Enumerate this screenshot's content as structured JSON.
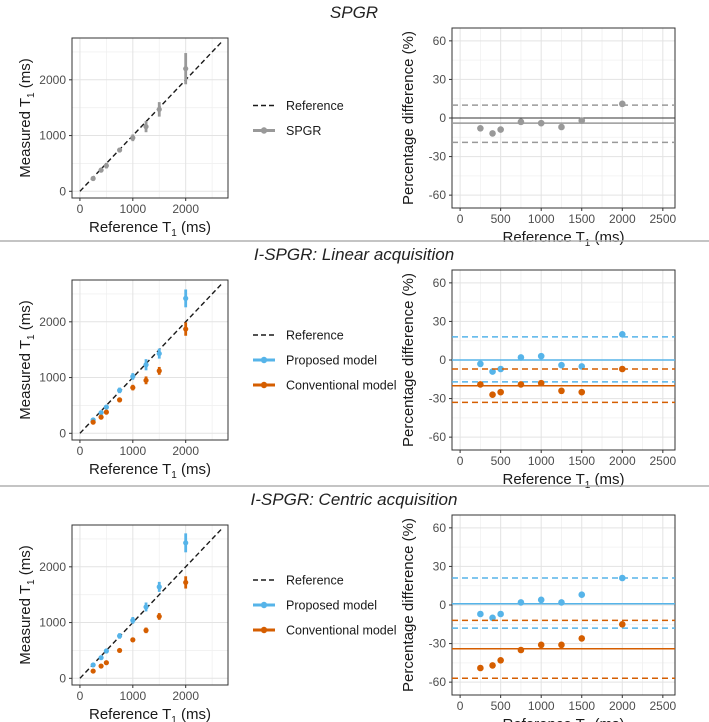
{
  "figure": {
    "sep_color": "#b0b0b0",
    "colors": {
      "ref": "#1a1a1a",
      "spgr": "#999999",
      "proposed": "#56b4e9",
      "conventional": "#d55e00"
    }
  },
  "chart_data": [
    {
      "id": "spgr",
      "title": "SPGR",
      "scatter": {
        "type": "scatter",
        "xlabel": "Reference T",
        "xlabel_sub": "1",
        "xlabel_unit": " (ms)",
        "ylabel": "Measured T",
        "ylabel_sub": "1",
        "ylabel_unit": " (ms)",
        "xlim": [
          -150,
          2800
        ],
        "ylim": [
          -120,
          2750
        ],
        "xticks": [
          0,
          1000,
          2000
        ],
        "yticks": [
          0,
          1000,
          2000
        ],
        "reference_line": [
          [
            0,
            0
          ],
          [
            2700,
            2700
          ]
        ],
        "series": [
          {
            "name": "SPGR",
            "color": "#999999",
            "x": [
              250,
              400,
              500,
              750,
              1000,
              1250,
              1500,
              2000
            ],
            "y": [
              230,
              380,
              460,
              740,
              960,
              1160,
              1470,
              2200
            ],
            "err": [
              40,
              40,
              50,
              40,
              60,
              100,
              130,
              280
            ]
          }
        ]
      },
      "legend": [
        {
          "label": "Reference",
          "style": "dashed",
          "color": "#1a1a1a"
        },
        {
          "label": "SPGR",
          "style": "point",
          "color": "#999999"
        }
      ],
      "diff": {
        "type": "scatter",
        "xlabel": "Reference T",
        "xlabel_sub": "1",
        "xlabel_unit": " (ms)",
        "ylabel": "Percentage difference (%)",
        "xlim": [
          -100,
          2650
        ],
        "ylim": [
          -70,
          70
        ],
        "xticks": [
          0,
          500,
          1000,
          1500,
          2000,
          2500
        ],
        "yticks": [
          -60,
          -30,
          0,
          30,
          60
        ],
        "series": [
          {
            "name": "SPGR",
            "color": "#999999",
            "x": [
              250,
              400,
              500,
              750,
              1000,
              1250,
              1500,
              2000
            ],
            "y": [
              -8,
              -12,
              -9,
              -3,
              -4,
              -7,
              -2,
              11
            ],
            "zero_line": 0,
            "mean": -4,
            "loa": [
              -19,
              10
            ]
          }
        ]
      }
    },
    {
      "id": "linear",
      "title": "I-SPGR: Linear acquisition",
      "scatter": {
        "type": "scatter",
        "xlabel": "Reference T",
        "xlabel_sub": "1",
        "xlabel_unit": " (ms)",
        "ylabel": "Measured T",
        "ylabel_sub": "1",
        "ylabel_unit": " (ms)",
        "xlim": [
          -150,
          2800
        ],
        "ylim": [
          -120,
          2750
        ],
        "xticks": [
          0,
          1000,
          2000
        ],
        "yticks": [
          0,
          1000,
          2000
        ],
        "reference_line": [
          [
            0,
            0
          ],
          [
            2700,
            2700
          ]
        ],
        "series": [
          {
            "name": "Proposed model",
            "color": "#56b4e9",
            "x": [
              250,
              400,
              500,
              750,
              1000,
              1250,
              1500,
              2000
            ],
            "y": [
              240,
              370,
              470,
              770,
              1020,
              1230,
              1430,
              2420
            ],
            "err": [
              30,
              30,
              40,
              50,
              60,
              100,
              90,
              160
            ]
          },
          {
            "name": "Conventional model",
            "color": "#d55e00",
            "x": [
              250,
              400,
              500,
              750,
              1000,
              1250,
              1500,
              2000
            ],
            "y": [
              200,
              290,
              380,
              600,
              820,
              950,
              1120,
              1870
            ],
            "err": [
              30,
              30,
              30,
              40,
              50,
              70,
              70,
              120
            ]
          }
        ]
      },
      "legend": [
        {
          "label": "Reference",
          "style": "dashed",
          "color": "#1a1a1a"
        },
        {
          "label": "Proposed model",
          "style": "point",
          "color": "#56b4e9"
        },
        {
          "label": "Conventional model",
          "style": "point",
          "color": "#d55e00"
        }
      ],
      "diff": {
        "type": "scatter",
        "xlabel": "Reference T",
        "xlabel_sub": "1",
        "xlabel_unit": " (ms)",
        "ylabel": "Percentage difference (%)",
        "xlim": [
          -100,
          2650
        ],
        "ylim": [
          -70,
          70
        ],
        "xticks": [
          0,
          500,
          1000,
          1500,
          2000,
          2500
        ],
        "yticks": [
          -60,
          -30,
          0,
          30,
          60
        ],
        "series": [
          {
            "name": "Proposed model",
            "color": "#56b4e9",
            "x": [
              250,
              400,
              500,
              750,
              1000,
              1250,
              1500,
              2000
            ],
            "y": [
              -3,
              -9,
              -7,
              2,
              3,
              -4,
              -5,
              20
            ],
            "mean": 0,
            "loa": [
              -17,
              18
            ]
          },
          {
            "name": "Conventional model",
            "color": "#d55e00",
            "x": [
              250,
              400,
              500,
              750,
              1000,
              1250,
              1500,
              2000
            ],
            "y": [
              -19,
              -27,
              -25,
              -19,
              -18,
              -24,
              -25,
              -7
            ],
            "mean": -20,
            "loa": [
              -33,
              -7
            ]
          }
        ]
      }
    },
    {
      "id": "centric",
      "title": "I-SPGR: Centric acquisition",
      "scatter": {
        "type": "scatter",
        "xlabel": "Reference T",
        "xlabel_sub": "1",
        "xlabel_unit": " (ms)",
        "ylabel": "Measured T",
        "ylabel_sub": "1",
        "ylabel_unit": " (ms)",
        "xlim": [
          -150,
          2800
        ],
        "ylim": [
          -120,
          2750
        ],
        "xticks": [
          0,
          1000,
          2000
        ],
        "yticks": [
          0,
          1000,
          2000
        ],
        "reference_line": [
          [
            0,
            0
          ],
          [
            2700,
            2700
          ]
        ],
        "series": [
          {
            "name": "Proposed model",
            "color": "#56b4e9",
            "x": [
              250,
              400,
              500,
              750,
              1000,
              1250,
              1500,
              2000
            ],
            "y": [
              240,
              370,
              490,
              760,
              1040,
              1280,
              1640,
              2430
            ],
            "err": [
              30,
              30,
              40,
              50,
              60,
              80,
              90,
              170
            ]
          },
          {
            "name": "Conventional model",
            "color": "#d55e00",
            "x": [
              250,
              400,
              500,
              750,
              1000,
              1250,
              1500,
              2000
            ],
            "y": [
              130,
              220,
              280,
              500,
              690,
              860,
              1110,
              1720
            ],
            "err": [
              20,
              20,
              30,
              30,
              40,
              50,
              60,
              110
            ]
          }
        ]
      },
      "legend": [
        {
          "label": "Reference",
          "style": "dashed",
          "color": "#1a1a1a"
        },
        {
          "label": "Proposed model",
          "style": "point",
          "color": "#56b4e9"
        },
        {
          "label": "Conventional model",
          "style": "point",
          "color": "#d55e00"
        }
      ],
      "diff": {
        "type": "scatter",
        "xlabel": "Reference T",
        "xlabel_sub": "1",
        "xlabel_unit": " (ms)",
        "ylabel": "Percentage difference (%)",
        "xlim": [
          -100,
          2650
        ],
        "ylim": [
          -70,
          70
        ],
        "xticks": [
          0,
          500,
          1000,
          1500,
          2000,
          2500
        ],
        "yticks": [
          -60,
          -30,
          0,
          30,
          60
        ],
        "series": [
          {
            "name": "Proposed model",
            "color": "#56b4e9",
            "x": [
              250,
              400,
              500,
              750,
              1000,
              1250,
              1500,
              2000
            ],
            "y": [
              -7,
              -10,
              -7,
              2,
              4,
              2,
              8,
              21
            ],
            "mean": 1,
            "loa": [
              -18,
              21
            ]
          },
          {
            "name": "Conventional model",
            "color": "#d55e00",
            "x": [
              250,
              400,
              500,
              750,
              1000,
              1250,
              1500,
              2000
            ],
            "y": [
              -49,
              -47,
              -43,
              -35,
              -31,
              -31,
              -26,
              -15
            ],
            "mean": -34,
            "loa": [
              -57,
              -12
            ]
          }
        ]
      }
    }
  ]
}
